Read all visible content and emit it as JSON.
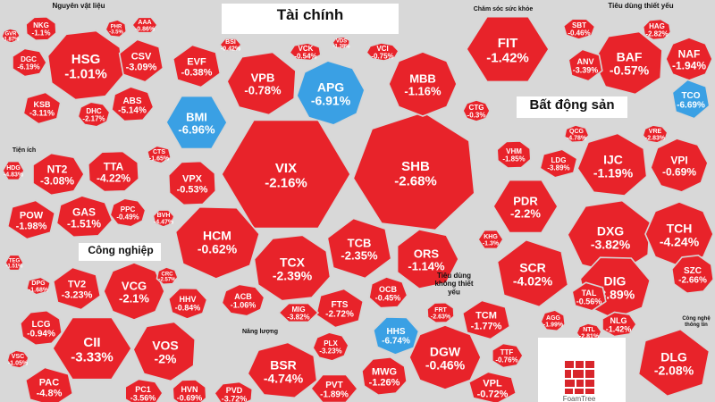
{
  "chart_data": {
    "type": "treemap",
    "colors": {
      "down": "#e8232a",
      "up": "#3aa0e4"
    },
    "groups": [
      {
        "name": "Tài chính",
        "stocks": [
          {
            "t": "VIX",
            "v": "-2.16%"
          },
          {
            "t": "SHB",
            "v": "-2.68%"
          },
          {
            "t": "APG",
            "v": "-6.91%"
          },
          {
            "t": "BMI",
            "v": "-6.96%"
          },
          {
            "t": "VPB",
            "v": "-0.78%"
          },
          {
            "t": "MBB",
            "v": "-1.16%"
          },
          {
            "t": "EVF",
            "v": "-0.38%"
          },
          {
            "t": "HCM",
            "v": "-0.62%"
          },
          {
            "t": "TCX",
            "v": "-2.39%"
          },
          {
            "t": "TCB",
            "v": "-2.35%"
          },
          {
            "t": "ORS",
            "v": "-1.14%"
          },
          {
            "t": "VPX",
            "v": "-0.53%"
          },
          {
            "t": "FTS",
            "v": "-2.72%"
          },
          {
            "t": "OCB",
            "v": "-0.45%"
          },
          {
            "t": "ACB",
            "v": "-1.06%"
          },
          {
            "t": "MIG",
            "v": "-3.82%"
          },
          {
            "t": "VCK",
            "v": "-0.54%"
          },
          {
            "t": "VCI",
            "v": "-0.75%"
          },
          {
            "t": "BSI",
            "v": "-0.42%"
          },
          {
            "t": "VDS",
            "v": "-1.38%"
          },
          {
            "t": "CTG",
            "v": "-0.3%"
          },
          {
            "t": "CTS",
            "v": "-1.65%"
          },
          {
            "t": "BVH",
            "v": "-4.47%"
          }
        ]
      },
      {
        "name": "Nguyên vật liệu",
        "stocks": [
          {
            "t": "HSG",
            "v": "-1.01%"
          },
          {
            "t": "CSV",
            "v": "-3.09%"
          },
          {
            "t": "DGC",
            "v": "-6.19%"
          },
          {
            "t": "NKG",
            "v": "-1.1%"
          },
          {
            "t": "KSB",
            "v": "-3.11%"
          },
          {
            "t": "ABS",
            "v": "-5.14%"
          },
          {
            "t": "DHC",
            "v": "-2.17%"
          },
          {
            "t": "AAA",
            "v": "-0.86%"
          },
          {
            "t": "PHR",
            "v": "-3.5%"
          },
          {
            "t": "GVR",
            "v": "-1.87%"
          }
        ]
      },
      {
        "name": "Chăm sóc sức khỏe",
        "stocks": [
          {
            "t": "FIT",
            "v": "-1.42%"
          }
        ]
      },
      {
        "name": "Tiêu dùng thiết yếu",
        "stocks": [
          {
            "t": "BAF",
            "v": "-0.57%"
          },
          {
            "t": "NAF",
            "v": "-1.94%"
          },
          {
            "t": "TCO",
            "v": "-6.69%"
          },
          {
            "t": "SBT",
            "v": "-0.46%"
          },
          {
            "t": "HAG",
            "v": "-2.82%"
          },
          {
            "t": "ANV",
            "v": "-3.39%"
          }
        ]
      },
      {
        "name": "Tiện ích",
        "stocks": [
          {
            "t": "NT2",
            "v": "-3.08%"
          },
          {
            "t": "TTA",
            "v": "-4.22%"
          },
          {
            "t": "POW",
            "v": "-1.98%"
          },
          {
            "t": "GAS",
            "v": "-1.51%"
          },
          {
            "t": "PPC",
            "v": "-0.49%"
          },
          {
            "t": "HDG",
            "v": "-4.83%"
          }
        ]
      },
      {
        "name": "Bất động sản",
        "stocks": [
          {
            "t": "IJC",
            "v": "-1.19%"
          },
          {
            "t": "VPI",
            "v": "-0.69%"
          },
          {
            "t": "PDR",
            "v": "-2.2%"
          },
          {
            "t": "DXG",
            "v": "-3.82%"
          },
          {
            "t": "TCH",
            "v": "-4.24%"
          },
          {
            "t": "SCR",
            "v": "-4.02%"
          },
          {
            "t": "DIG",
            "v": "-3.89%"
          },
          {
            "t": "SZC",
            "v": "-2.66%"
          },
          {
            "t": "TAL",
            "v": "-0.56%"
          },
          {
            "t": "NLG",
            "v": "-1.42%"
          },
          {
            "t": "VHM",
            "v": "-1.85%"
          },
          {
            "t": "LDG",
            "v": "-3.89%"
          },
          {
            "t": "QCG",
            "v": "-4.78%"
          },
          {
            "t": "VRE",
            "v": "-2.83%"
          },
          {
            "t": "KHG",
            "v": "-1.3%"
          },
          {
            "t": "AGG",
            "v": "-1.99%"
          },
          {
            "t": "NTL",
            "v": "-2.81%"
          }
        ]
      },
      {
        "name": "Công nghiệp",
        "stocks": [
          {
            "t": "CII",
            "v": "-3.33%"
          },
          {
            "t": "VOS",
            "v": "-2%"
          },
          {
            "t": "VCG",
            "v": "-2.1%"
          },
          {
            "t": "TV2",
            "v": "-3.23%"
          },
          {
            "t": "HHV",
            "v": "-0.84%"
          },
          {
            "t": "LCG",
            "v": "-0.94%"
          },
          {
            "t": "PAC",
            "v": "-4.8%"
          },
          {
            "t": "PC1",
            "v": "-3.56%"
          },
          {
            "t": "HVN",
            "v": "-0.69%"
          },
          {
            "t": "DPG",
            "v": "-1.68%"
          },
          {
            "t": "CRC",
            "v": "-2.57%"
          },
          {
            "t": "VSC",
            "v": "-1.05%"
          },
          {
            "t": "TEG",
            "v": "-1.51%"
          }
        ]
      },
      {
        "name": "Năng lượng",
        "stocks": [
          {
            "t": "BSR",
            "v": "-4.74%"
          },
          {
            "t": "PLX",
            "v": "-3.23%"
          },
          {
            "t": "PVT",
            "v": "-1.89%"
          },
          {
            "t": "PVD",
            "v": "-3.72%"
          }
        ]
      },
      {
        "name": "Tiêu dùng không thiết yếu",
        "stocks": [
          {
            "t": "DGW",
            "v": "-0.46%"
          },
          {
            "t": "TCM",
            "v": "-1.77%"
          },
          {
            "t": "HHS",
            "v": "-6.74%"
          },
          {
            "t": "MWG",
            "v": "-1.26%"
          },
          {
            "t": "VPL",
            "v": "-0.72%"
          },
          {
            "t": "TTF",
            "v": "-0.76%"
          },
          {
            "t": "FRT",
            "v": "-2.63%"
          }
        ]
      },
      {
        "name": "Công nghệ thông tin",
        "stocks": [
          {
            "t": "DLG",
            "v": "-2.08%"
          }
        ]
      }
    ]
  },
  "logo": {
    "text": "FoamTree"
  }
}
